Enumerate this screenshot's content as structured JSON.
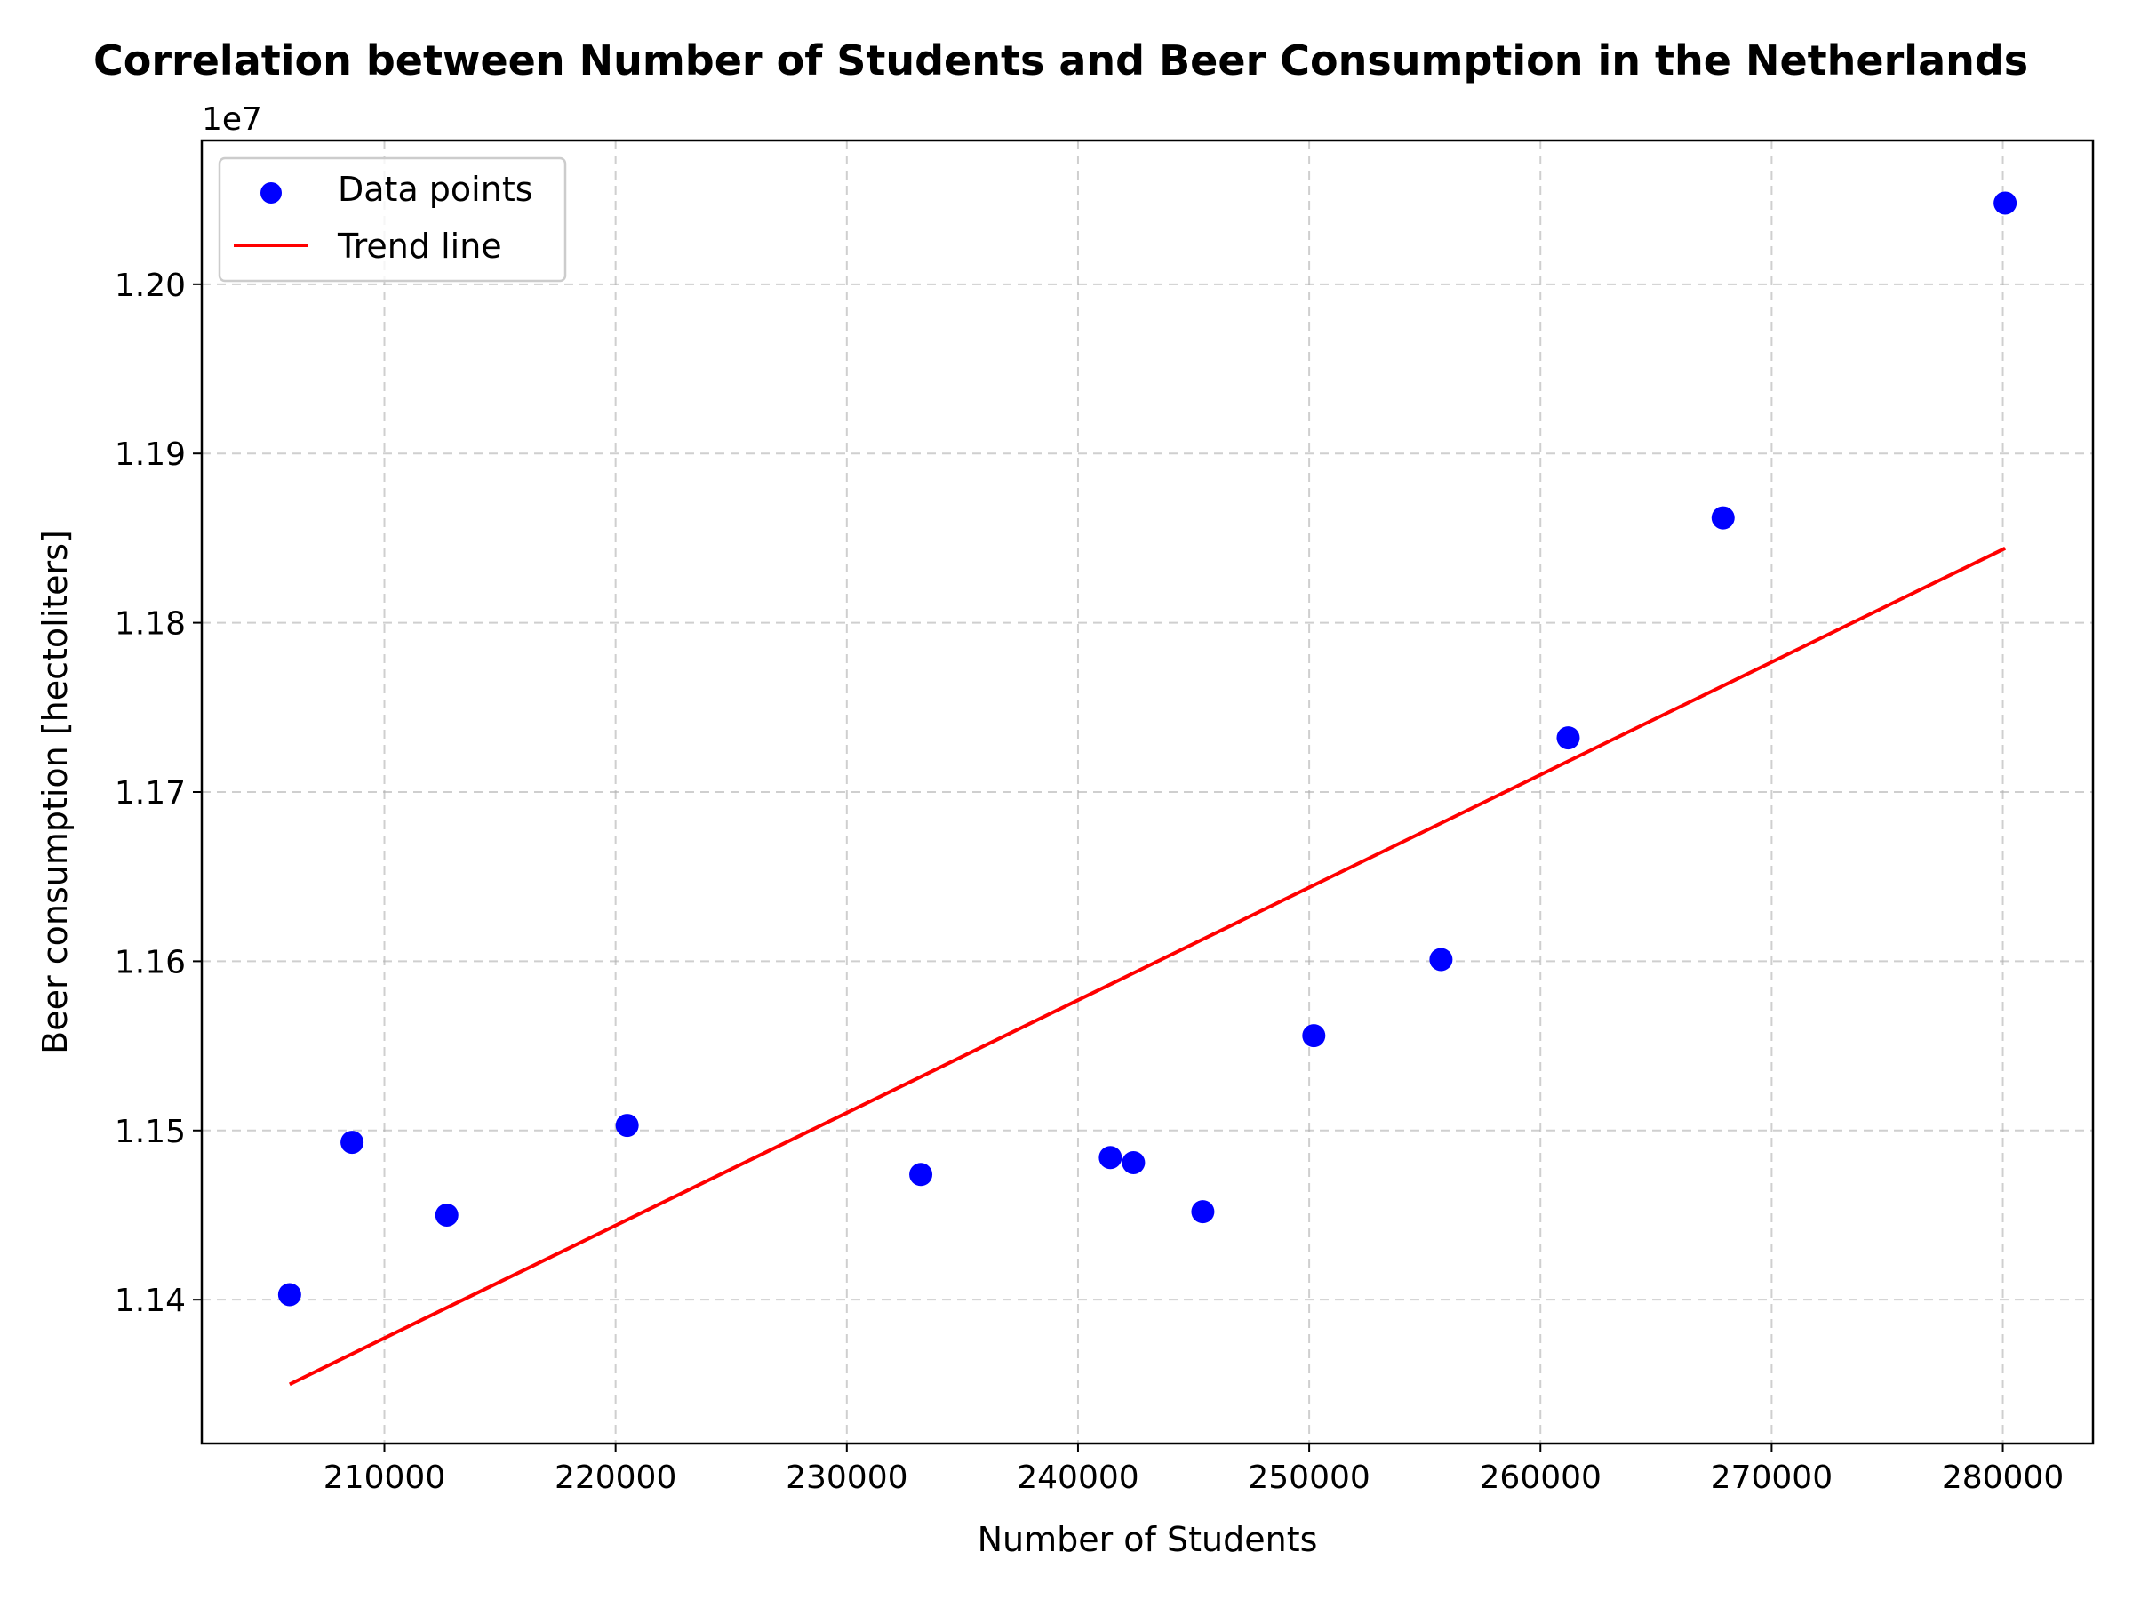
{
  "chart_data": {
    "type": "scatter",
    "title": "Correlation between Number of Students and Beer Consumption in the Netherlands",
    "xlabel": "Number of Students",
    "ylabel": "Beer consumption [hectoliters]",
    "y_offset_label": "1e7",
    "xlim": [
      202100,
      283900
    ],
    "ylim": [
      1.1315,
      1.2085
    ],
    "x_ticks": [
      210000,
      220000,
      230000,
      240000,
      250000,
      260000,
      270000,
      280000
    ],
    "x_tick_labels": [
      "210000",
      "220000",
      "230000",
      "240000",
      "250000",
      "260000",
      "270000",
      "280000"
    ],
    "y_ticks": [
      1.14,
      1.15,
      1.16,
      1.17,
      1.18,
      1.19,
      1.2
    ],
    "y_tick_labels": [
      "1.14",
      "1.15",
      "1.16",
      "1.17",
      "1.18",
      "1.19",
      "1.20"
    ],
    "grid": true,
    "grid_style": "dashed",
    "legend_position": "top-left",
    "series": [
      {
        "name": "Data points",
        "kind": "scatter",
        "color": "#0000ff",
        "x": [
          205900,
          208600,
          212700,
          220500,
          233200,
          241400,
          242400,
          245400,
          250200,
          255700,
          261200,
          267900,
          280100
        ],
        "y": [
          1.1403,
          1.1493,
          1.145,
          1.1503,
          1.1474,
          1.1484,
          1.1481,
          1.1452,
          1.1556,
          1.1601,
          1.1732,
          1.1862,
          1.2048
        ]
      },
      {
        "name": "Trend line",
        "kind": "line",
        "color": "#ff0000",
        "x": [
          205900,
          280100
        ],
        "y": [
          1.135,
          1.1844
        ]
      }
    ]
  }
}
